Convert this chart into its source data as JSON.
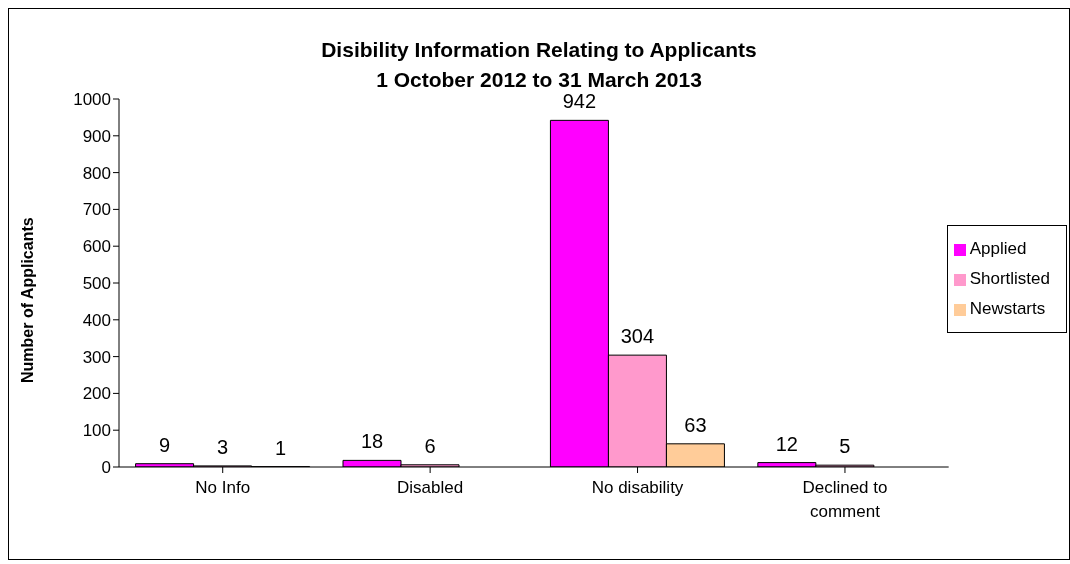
{
  "chart_data": {
    "type": "bar",
    "title": "Disibility Information Relating to Applicants",
    "subtitle": "1 October 2012 to 31 March 2013",
    "ylabel": "Number of Applicants",
    "categories": [
      "No Info",
      "Disabled",
      "No disability",
      "Declined to comment"
    ],
    "series": [
      {
        "name": "Applied",
        "color": "#ff00ff",
        "values": [
          9,
          18,
          942,
          12
        ]
      },
      {
        "name": "Shortlisted",
        "color": "#ff99cc",
        "values": [
          3,
          6,
          304,
          5
        ]
      },
      {
        "name": "Newstarts",
        "color": "#ffcc99",
        "values": [
          1,
          null,
          63,
          null
        ]
      }
    ],
    "ylim": [
      0,
      1000
    ],
    "yticks": [
      0,
      100,
      200,
      300,
      400,
      500,
      600,
      700,
      800,
      900,
      1000
    ],
    "data_labels": true,
    "legend": "right",
    "grid": false
  }
}
